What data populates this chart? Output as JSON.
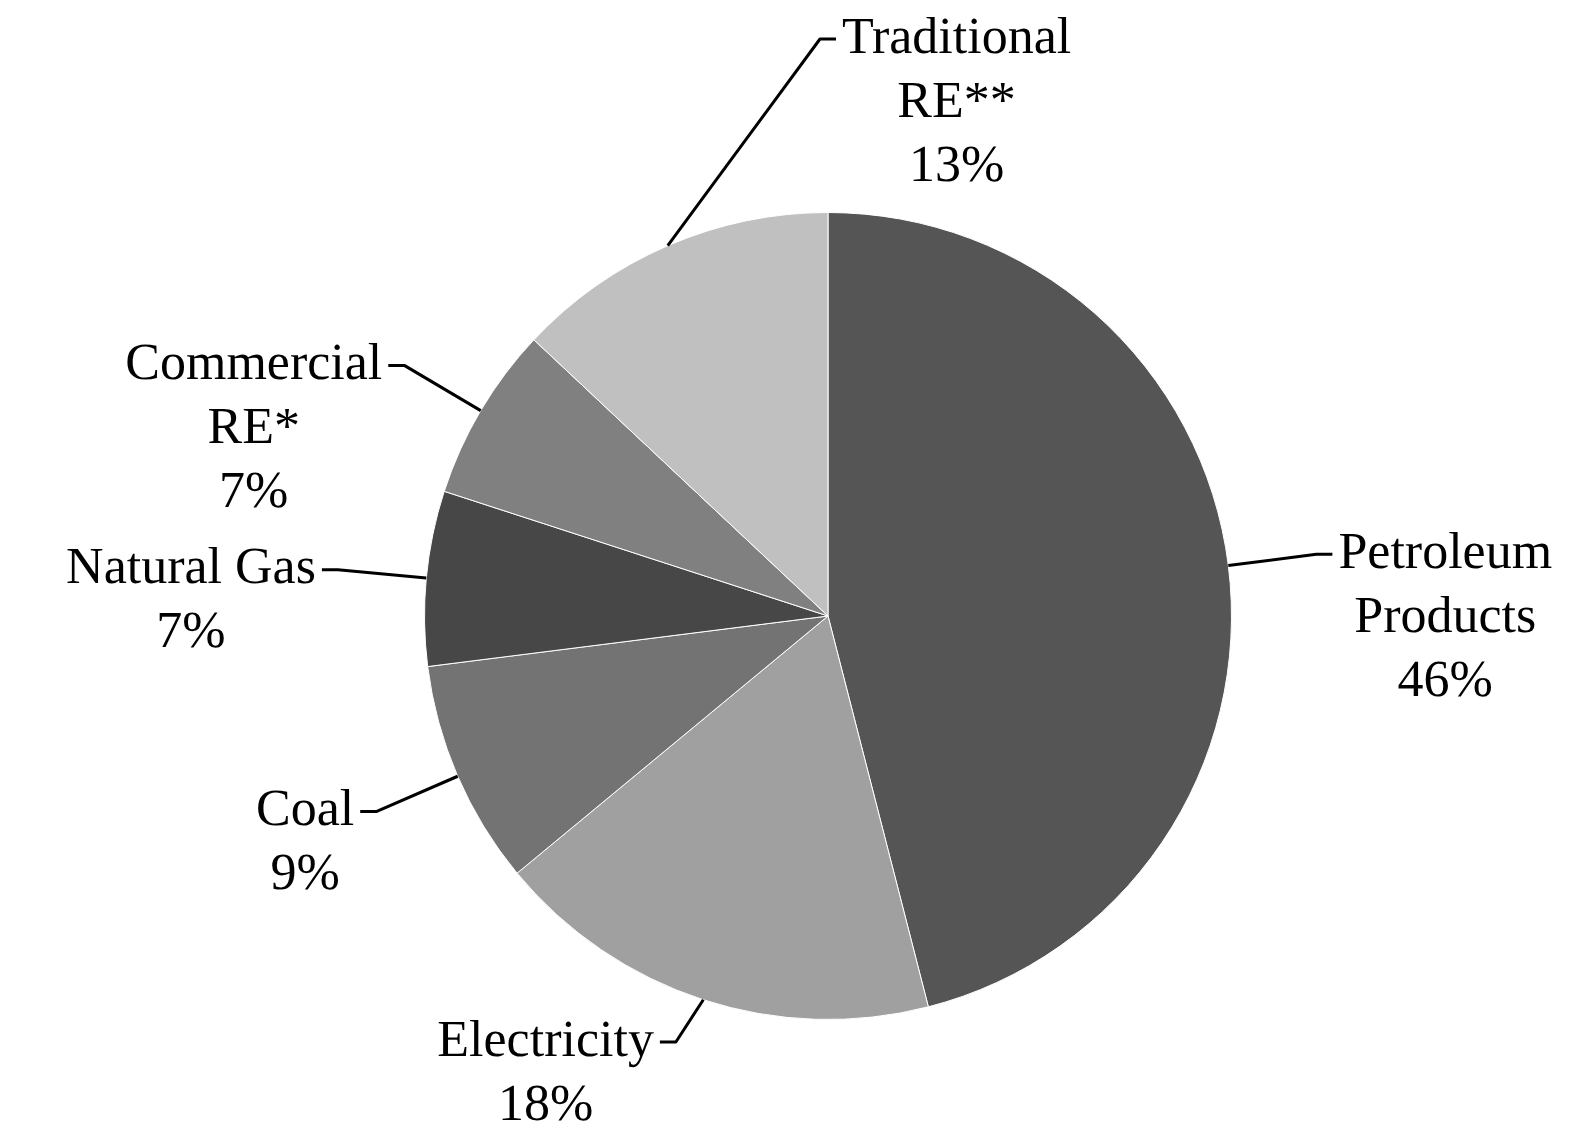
{
  "chart_data": {
    "type": "pie",
    "categories": [
      "Petroleum Products",
      "Electricity",
      "Coal",
      "Natural Gas",
      "Commercial RE*",
      "Traditional RE**"
    ],
    "values": [
      46,
      18,
      9,
      7,
      7,
      13
    ],
    "colors": [
      "#555555",
      "#a0a0a0",
      "#737373",
      "#474747",
      "#808080",
      "#c0c0c0"
    ],
    "value_labels": [
      "46%",
      "18%",
      "9%",
      "7%",
      "7%",
      "13%"
    ]
  }
}
